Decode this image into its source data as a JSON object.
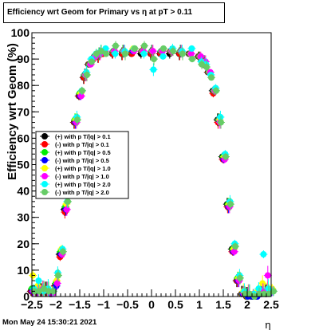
{
  "title": "Efficiency wrt Geom for Primary vs   η at pT > 0.11",
  "timestamp": "Mon May 24 15:30:21 2021",
  "chart_data": {
    "type": "scatter",
    "xlabel": "η",
    "ylabel": "Efficiency wrt Geom (%)",
    "xlim": [
      -2.5,
      2.5
    ],
    "ylim": [
      0,
      100
    ],
    "x_ticks": [
      "−2.5",
      "−2",
      "−1.5",
      "−1",
      "−0.5",
      "0",
      "0.5",
      "1",
      "1.5",
      "2",
      "2.5"
    ],
    "y_ticks": [
      "0",
      "10",
      "20",
      "30",
      "40",
      "50",
      "60",
      "70",
      "80",
      "90",
      "100"
    ],
    "legend_position": "left-middle",
    "grid": false,
    "series": [
      {
        "name": "(+) with p T/|q| > 0.1",
        "color": "#000000",
        "shift": -0.02,
        "x": [
          -2.5,
          -2.4,
          -2.3,
          -2.2,
          -2.1,
          -2.0,
          -1.9,
          -1.8,
          -1.7,
          -1.6,
          -1.5,
          -1.4,
          -1.3,
          -1.2,
          -1.1,
          -1.0,
          -0.8,
          -0.6,
          -0.4,
          -0.2,
          0.0,
          0.2,
          0.4,
          0.6,
          0.8,
          1.0,
          1.1,
          1.2,
          1.3,
          1.4,
          1.5,
          1.6,
          1.7,
          1.8,
          1.9,
          2.0,
          2.1,
          2.2,
          2.3,
          2.4,
          2.5
        ],
        "y": [
          2,
          2,
          2,
          2,
          1,
          4,
          16,
          33,
          52,
          66,
          76,
          83,
          88,
          90,
          91,
          92,
          92,
          92,
          92,
          92,
          92,
          92,
          92,
          92,
          92,
          91,
          89,
          85,
          78,
          67,
          53,
          35,
          18,
          6,
          1,
          0,
          0,
          0,
          1,
          1,
          2
        ]
      },
      {
        "name": "(-) with p T/|q| > 0.1",
        "color": "#ff0000",
        "shift": -0.01,
        "x": [
          -2.5,
          -2.4,
          -2.3,
          -2.2,
          -2.1,
          -2.0,
          -1.9,
          -1.8,
          -1.7,
          -1.6,
          -1.5,
          -1.4,
          -1.3,
          -1.2,
          -1.1,
          -1.0,
          -0.8,
          -0.6,
          -0.4,
          -0.2,
          0.0,
          0.2,
          0.4,
          0.6,
          0.8,
          1.0,
          1.1,
          1.2,
          1.3,
          1.4,
          1.5,
          1.6,
          1.7,
          1.8,
          1.9,
          2.0,
          2.1,
          2.2,
          2.3,
          2.4,
          2.5
        ],
        "y": [
          2,
          2,
          2,
          2,
          1,
          4,
          15,
          32,
          51,
          66,
          76,
          83,
          88,
          90,
          91,
          92,
          92,
          92,
          92,
          93,
          92,
          92,
          93,
          92,
          92,
          91,
          89,
          85,
          77,
          66,
          52,
          34,
          17,
          6,
          1,
          0,
          0,
          0,
          1,
          1,
          2
        ]
      },
      {
        "name": "(+) with p T/|q| > 0.5",
        "color": "#00ee00",
        "shift": 0.0,
        "x": [
          -2.5,
          -2.4,
          -2.3,
          -2.2,
          -2.1,
          -2.0,
          -1.9,
          -1.8,
          -1.7,
          -1.6,
          -1.5,
          -1.4,
          -1.3,
          -1.2,
          -1.1,
          -1.0,
          -0.8,
          -0.6,
          -0.4,
          -0.2,
          0.0,
          0.2,
          0.4,
          0.6,
          0.8,
          1.0,
          1.1,
          1.2,
          1.3,
          1.4,
          1.5,
          1.6,
          1.7,
          1.8,
          1.9,
          2.0,
          2.1,
          2.2,
          2.3,
          2.4,
          2.5
        ],
        "y": [
          3,
          2,
          2,
          2,
          1,
          5,
          17,
          34,
          53,
          67,
          77,
          84,
          88,
          91,
          92,
          93,
          93,
          93,
          93,
          93,
          93,
          93,
          93,
          93,
          92,
          91,
          89,
          85,
          78,
          67,
          53,
          35,
          18,
          7,
          1,
          0,
          0,
          0,
          1,
          1,
          2
        ]
      },
      {
        "name": "(-) with p T/|q| > 0.5",
        "color": "#0000ff",
        "shift": 0.01,
        "x": [
          -2.5,
          -2.4,
          -2.3,
          -2.2,
          -2.1,
          -2.0,
          -1.9,
          -1.8,
          -1.7,
          -1.6,
          -1.5,
          -1.4,
          -1.3,
          -1.2,
          -1.1,
          -1.0,
          -0.8,
          -0.6,
          -0.4,
          -0.2,
          0.0,
          0.2,
          0.4,
          0.6,
          0.8,
          1.0,
          1.1,
          1.2,
          1.3,
          1.4,
          1.5,
          1.6,
          1.7,
          1.8,
          1.9,
          2.0,
          2.1,
          2.2,
          2.3,
          2.4,
          2.5
        ],
        "y": [
          2,
          2,
          2,
          2,
          1,
          4,
          16,
          33,
          52,
          66,
          76,
          84,
          88,
          91,
          92,
          93,
          93,
          93,
          93,
          93,
          93,
          93,
          93,
          93,
          92,
          91,
          89,
          85,
          78,
          67,
          52,
          34,
          17,
          6,
          1,
          0,
          0,
          0,
          1,
          1,
          2
        ]
      },
      {
        "name": "(+) with p T/|q| > 1.0",
        "color": "#ffff00",
        "shift": 0.02,
        "x": [
          -2.5,
          -2.4,
          -2.3,
          -2.2,
          -2.1,
          -2.0,
          -1.9,
          -1.8,
          -1.7,
          -1.6,
          -1.5,
          -1.4,
          -1.3,
          -1.2,
          -1.1,
          -1.0,
          -0.8,
          -0.6,
          -0.4,
          -0.2,
          0.0,
          0.2,
          0.4,
          0.6,
          0.8,
          1.0,
          1.1,
          1.2,
          1.3,
          1.4,
          1.5,
          1.6,
          1.7,
          1.8,
          1.9,
          2.0,
          2.1,
          2.2,
          2.3,
          2.4,
          2.5
        ],
        "y": [
          8,
          4,
          3,
          2,
          2,
          6,
          18,
          35,
          54,
          67,
          77,
          84,
          88,
          91,
          92,
          93,
          93,
          93,
          94,
          93,
          93,
          93,
          93,
          93,
          92,
          91,
          89,
          85,
          78,
          67,
          53,
          35,
          18,
          7,
          2,
          1,
          1,
          2,
          5,
          2,
          3
        ]
      },
      {
        "name": "(-) with p T/|q| > 1.0",
        "color": "#ff00ff",
        "shift": 0.03,
        "x": [
          -2.5,
          -2.4,
          -2.3,
          -2.2,
          -2.1,
          -2.0,
          -1.9,
          -1.8,
          -1.7,
          -1.6,
          -1.5,
          -1.4,
          -1.3,
          -1.2,
          -1.1,
          -1.0,
          -0.8,
          -0.6,
          -0.4,
          -0.2,
          0.0,
          0.2,
          0.4,
          0.6,
          0.8,
          1.0,
          1.1,
          1.2,
          1.3,
          1.4,
          1.5,
          1.6,
          1.7,
          1.8,
          1.9,
          2.0,
          2.1,
          2.2,
          2.3,
          2.4,
          2.5
        ],
        "y": [
          2,
          2,
          3,
          2,
          1,
          5,
          16,
          33,
          52,
          66,
          76,
          84,
          88,
          91,
          92,
          93,
          93,
          93,
          93,
          93,
          93,
          93,
          93,
          93,
          92,
          91,
          89,
          85,
          78,
          66,
          52,
          34,
          17,
          6,
          1,
          1,
          1,
          1,
          2,
          8,
          2
        ]
      },
      {
        "name": "(+) with p T/|q| > 2.0",
        "color": "#00ffff",
        "shift": 0.04,
        "x": [
          -2.5,
          -2.4,
          -2.3,
          -2.2,
          -2.1,
          -2.0,
          -1.9,
          -1.8,
          -1.7,
          -1.6,
          -1.5,
          -1.4,
          -1.3,
          -1.2,
          -1.1,
          -1.0,
          -0.8,
          -0.6,
          -0.4,
          -0.2,
          0.0,
          0.2,
          0.4,
          0.6,
          0.8,
          1.0,
          1.1,
          1.2,
          1.3,
          1.4,
          1.5,
          1.6,
          1.7,
          1.8,
          1.9,
          2.0,
          2.1,
          2.2,
          2.3,
          2.4,
          2.5
        ],
        "y": [
          3,
          6,
          2,
          3,
          2,
          9,
          18,
          36,
          55,
          68,
          78,
          85,
          90,
          92,
          93,
          94,
          92,
          93,
          94,
          92,
          86,
          91,
          94,
          93,
          94,
          89,
          88,
          84,
          79,
          68,
          54,
          36,
          20,
          8,
          2,
          1,
          1,
          3,
          16,
          3,
          2
        ]
      },
      {
        "name": "(-) with p T/|q| > 2.0",
        "color": "#66cc66",
        "shift": 0.05,
        "x": [
          -2.5,
          -2.4,
          -2.3,
          -2.2,
          -2.1,
          -2.0,
          -1.9,
          -1.8,
          -1.7,
          -1.6,
          -1.5,
          -1.4,
          -1.3,
          -1.2,
          -1.1,
          -1.0,
          -0.8,
          -0.6,
          -0.4,
          -0.2,
          0.0,
          0.2,
          0.4,
          0.6,
          0.8,
          1.0,
          1.1,
          1.2,
          1.3,
          1.4,
          1.5,
          1.6,
          1.7,
          1.8,
          1.9,
          2.0,
          2.1,
          2.2,
          2.3,
          2.4,
          2.5
        ],
        "y": [
          2,
          2,
          3,
          2,
          2,
          8,
          17,
          36,
          54,
          67,
          78,
          84,
          89,
          92,
          93,
          92,
          95,
          92,
          94,
          95,
          90,
          94,
          93,
          92,
          90,
          88,
          87,
          83,
          78,
          66,
          53,
          35,
          19,
          7,
          1,
          1,
          0,
          1,
          1,
          1,
          2
        ]
      }
    ]
  }
}
